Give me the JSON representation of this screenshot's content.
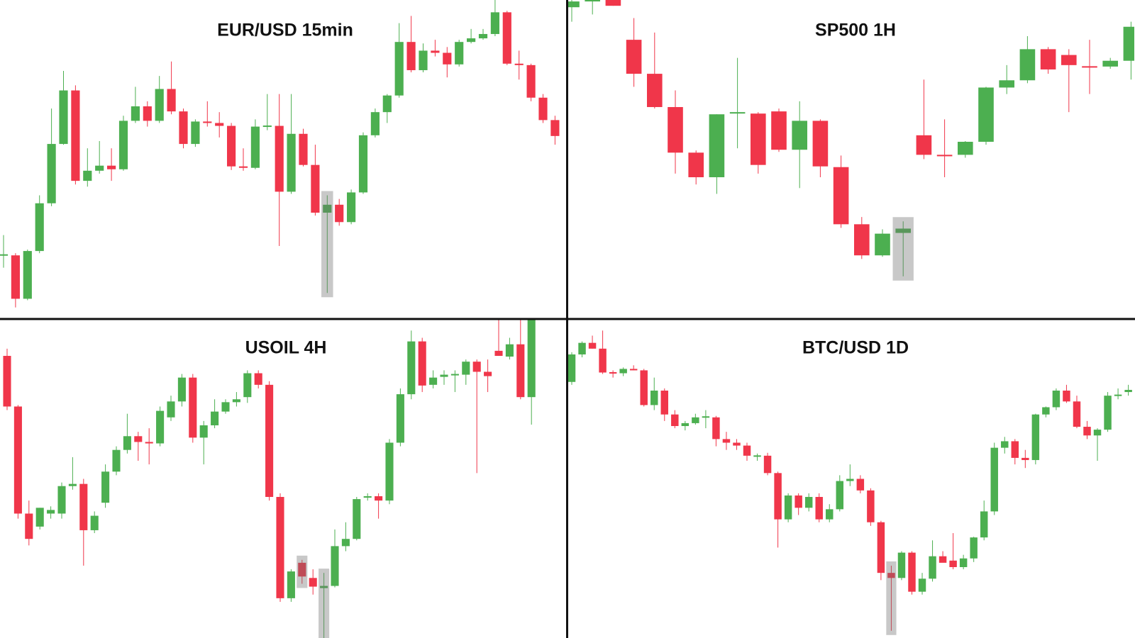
{
  "chart_data": [
    {
      "type": "candlestick",
      "title": "EUR/USD 15min",
      "ylim": [
        0,
        440
      ],
      "up_color": "#4caf50",
      "down_color": "#f0364a",
      "highlights": [
        27
      ],
      "candles": [
        [
          87,
          115,
          70,
          88
        ],
        [
          87,
          90,
          15,
          27
        ],
        [
          27,
          95,
          25,
          93
        ],
        [
          93,
          170,
          90,
          159
        ],
        [
          159,
          290,
          155,
          241
        ],
        [
          241,
          342,
          240,
          315
        ],
        [
          315,
          322,
          185,
          190
        ],
        [
          190,
          235,
          182,
          204
        ],
        [
          204,
          245,
          200,
          211
        ],
        [
          211,
          235,
          190,
          206
        ],
        [
          206,
          280,
          204,
          273
        ],
        [
          273,
          320,
          270,
          293
        ],
        [
          293,
          300,
          265,
          273
        ],
        [
          273,
          335,
          270,
          317
        ],
        [
          317,
          355,
          282,
          286
        ],
        [
          286,
          290,
          235,
          241
        ],
        [
          241,
          275,
          237,
          272
        ],
        [
          272,
          300,
          265,
          270
        ],
        [
          270,
          285,
          250,
          266
        ],
        [
          266,
          270,
          205,
          210
        ],
        [
          210,
          235,
          204,
          208
        ],
        [
          208,
          275,
          206,
          265
        ],
        [
          265,
          310,
          260,
          266
        ],
        [
          266,
          310,
          100,
          175
        ],
        [
          175,
          310,
          172,
          255
        ],
        [
          255,
          262,
          210,
          212
        ],
        [
          212,
          240,
          142,
          146
        ],
        [
          146,
          170,
          35,
          157
        ],
        [
          157,
          165,
          128,
          133
        ],
        [
          133,
          178,
          130,
          174
        ],
        [
          174,
          257,
          172,
          253
        ],
        [
          253,
          290,
          250,
          285
        ],
        [
          285,
          310,
          270,
          308
        ],
        [
          308,
          408,
          305,
          382
        ],
        [
          382,
          418,
          340,
          343
        ],
        [
          343,
          380,
          340,
          370
        ],
        [
          370,
          385,
          362,
          367
        ],
        [
          367,
          375,
          333,
          351
        ],
        [
          351,
          385,
          348,
          382
        ],
        [
          382,
          400,
          380,
          387
        ],
        [
          387,
          400,
          385,
          393
        ],
        [
          393,
          440,
          390,
          423
        ],
        [
          423,
          425,
          350,
          352
        ],
        [
          352,
          370,
          330,
          350
        ],
        [
          350,
          352,
          300,
          305
        ],
        [
          305,
          310,
          270,
          274
        ],
        [
          274,
          280,
          240,
          252
        ]
      ]
    },
    {
      "type": "candlestick",
      "title": "SP500 1H",
      "ylim": [
        0,
        440
      ],
      "up_color": "#4caf50",
      "down_color": "#f0364a",
      "highlights": [
        16
      ],
      "candles": [
        [
          430,
          440,
          410,
          438
        ],
        [
          438,
          440,
          420,
          440
        ],
        [
          440,
          440,
          432,
          432
        ],
        [
          385,
          415,
          320,
          338
        ],
        [
          338,
          395,
          290,
          292
        ],
        [
          292,
          315,
          200,
          229
        ],
        [
          229,
          232,
          185,
          195
        ],
        [
          195,
          282,
          172,
          282
        ],
        [
          283,
          360,
          235,
          285
        ],
        [
          283,
          285,
          200,
          212
        ],
        [
          286,
          290,
          230,
          233
        ],
        [
          233,
          300,
          180,
          273
        ],
        [
          273,
          275,
          195,
          210
        ],
        [
          209,
          225,
          125,
          130
        ],
        [
          130,
          140,
          82,
          87
        ],
        [
          87,
          123,
          85,
          117
        ],
        [
          118,
          134,
          58,
          124
        ],
        [
          253,
          330,
          220,
          226
        ],
        [
          226,
          275,
          195,
          224
        ],
        [
          226,
          245,
          222,
          244
        ],
        [
          244,
          320,
          240,
          319
        ],
        [
          319,
          350,
          310,
          329
        ],
        [
          329,
          390,
          325,
          372
        ],
        [
          372,
          375,
          338,
          344
        ],
        [
          364,
          372,
          285,
          350
        ],
        [
          348,
          385,
          310,
          347
        ],
        [
          348,
          360,
          345,
          356
        ],
        [
          356,
          410,
          330,
          403
        ]
      ]
    },
    {
      "type": "candlestick",
      "title": "USOIL 4H",
      "ylim": [
        0,
        440
      ],
      "up_color": "#4caf50",
      "down_color": "#f0364a",
      "highlights": [
        27,
        29
      ],
      "candles": [
        [
          390,
          400,
          315,
          320
        ],
        [
          320,
          322,
          165,
          172
        ],
        [
          172,
          190,
          128,
          137
        ],
        [
          154,
          180,
          150,
          180
        ],
        [
          172,
          182,
          165,
          177
        ],
        [
          172,
          215,
          165,
          210
        ],
        [
          210,
          250,
          205,
          213
        ],
        [
          213,
          220,
          100,
          149
        ],
        [
          149,
          175,
          145,
          169
        ],
        [
          187,
          240,
          180,
          230
        ],
        [
          230,
          265,
          225,
          260
        ],
        [
          260,
          310,
          255,
          279
        ],
        [
          279,
          285,
          245,
          271
        ],
        [
          271,
          290,
          240,
          269
        ],
        [
          269,
          320,
          265,
          314
        ],
        [
          305,
          335,
          300,
          327
        ],
        [
          327,
          365,
          320,
          360
        ],
        [
          360,
          365,
          270,
          277
        ],
        [
          277,
          300,
          240,
          294
        ],
        [
          294,
          330,
          290,
          313
        ],
        [
          313,
          330,
          310,
          326
        ],
        [
          326,
          340,
          320,
          330
        ],
        [
          333,
          370,
          325,
          366
        ],
        [
          366,
          370,
          345,
          350
        ],
        [
          350,
          355,
          190,
          195
        ],
        [
          195,
          200,
          50,
          55
        ],
        [
          55,
          95,
          50,
          92
        ],
        [
          104,
          108,
          75,
          85
        ],
        [
          83,
          95,
          60,
          71
        ],
        [
          69,
          90,
          0,
          72
        ],
        [
          72,
          150,
          70,
          127
        ],
        [
          127,
          160,
          120,
          137
        ],
        [
          137,
          195,
          135,
          192
        ],
        [
          194,
          200,
          190,
          196
        ],
        [
          196,
          200,
          165,
          190
        ],
        [
          190,
          275,
          185,
          270
        ],
        [
          270,
          345,
          265,
          337
        ],
        [
          337,
          425,
          330,
          410
        ],
        [
          410,
          415,
          340,
          349
        ],
        [
          350,
          370,
          345,
          360
        ],
        [
          361,
          370,
          350,
          364
        ],
        [
          363,
          370,
          340,
          365
        ],
        [
          364,
          385,
          350,
          382
        ],
        [
          382,
          385,
          228,
          368
        ],
        [
          368,
          385,
          340,
          362
        ],
        [
          397,
          440,
          390,
          390
        ],
        [
          389,
          415,
          385,
          406
        ],
        [
          406,
          440,
          330,
          333
        ],
        [
          333,
          440,
          295,
          440
        ]
      ]
    },
    {
      "type": "candlestick",
      "title": "BTC/USD 1D",
      "ylim": [
        0,
        440
      ],
      "up_color": "#4caf50",
      "down_color": "#f0364a",
      "highlights": [
        31
      ],
      "candles": [
        [
          354,
          395,
          350,
          392
        ],
        [
          392,
          410,
          388,
          408
        ],
        [
          408,
          418,
          400,
          400
        ],
        [
          400,
          425,
          365,
          367
        ],
        [
          367,
          370,
          360,
          366
        ],
        [
          366,
          374,
          362,
          372
        ],
        [
          372,
          377,
          370,
          370
        ],
        [
          370,
          372,
          320,
          322
        ],
        [
          322,
          360,
          315,
          342
        ],
        [
          342,
          345,
          300,
          309
        ],
        [
          309,
          315,
          290,
          293
        ],
        [
          293,
          300,
          287,
          297
        ],
        [
          297,
          310,
          295,
          305
        ],
        [
          305,
          315,
          290,
          306
        ],
        [
          305,
          307,
          265,
          275
        ],
        [
          275,
          285,
          260,
          270
        ],
        [
          270,
          275,
          260,
          266
        ],
        [
          266,
          270,
          245,
          252
        ],
        [
          251,
          255,
          245,
          252
        ],
        [
          252,
          256,
          225,
          228
        ],
        [
          228,
          230,
          125,
          164
        ],
        [
          164,
          200,
          160,
          197
        ],
        [
          197,
          200,
          170,
          180
        ],
        [
          180,
          200,
          175,
          195
        ],
        [
          195,
          200,
          160,
          164
        ],
        [
          164,
          185,
          160,
          178
        ],
        [
          178,
          225,
          175,
          217
        ],
        [
          217,
          240,
          210,
          220
        ],
        [
          220,
          225,
          200,
          204
        ],
        [
          204,
          207,
          155,
          160
        ],
        [
          160,
          162,
          80,
          90
        ],
        [
          90,
          100,
          10,
          83
        ],
        [
          83,
          120,
          80,
          118
        ],
        [
          118,
          120,
          60,
          64
        ],
        [
          64,
          90,
          60,
          82
        ],
        [
          82,
          135,
          78,
          113
        ],
        [
          113,
          120,
          105,
          104
        ],
        [
          107,
          145,
          95,
          98
        ],
        [
          98,
          115,
          95,
          110
        ],
        [
          110,
          140,
          105,
          139
        ],
        [
          139,
          190,
          135,
          175
        ],
        [
          175,
          270,
          170,
          263
        ],
        [
          263,
          278,
          255,
          272
        ],
        [
          272,
          275,
          240,
          249
        ],
        [
          249,
          260,
          235,
          246
        ],
        [
          246,
          310,
          240,
          309
        ],
        [
          309,
          320,
          305,
          319
        ],
        [
          319,
          345,
          315,
          342
        ],
        [
          342,
          350,
          325,
          327
        ],
        [
          327,
          335,
          290,
          292
        ],
        [
          292,
          300,
          275,
          280
        ],
        [
          280,
          290,
          245,
          288
        ],
        [
          288,
          340,
          285,
          335
        ],
        [
          335,
          345,
          330,
          336
        ],
        [
          340,
          350,
          335,
          343
        ]
      ]
    }
  ]
}
